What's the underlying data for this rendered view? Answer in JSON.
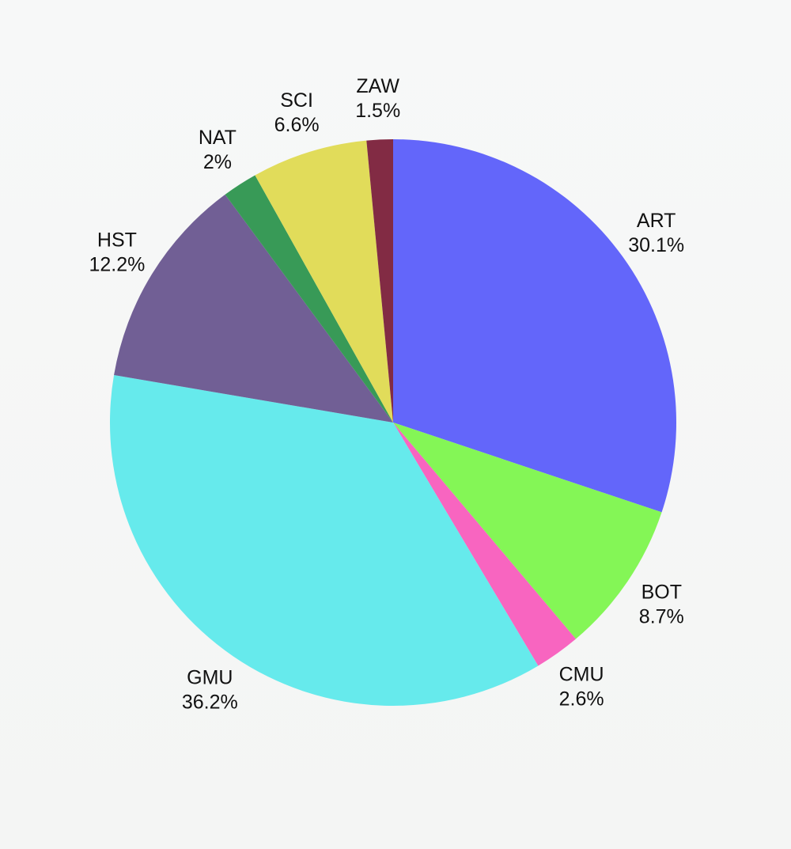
{
  "chart_data": {
    "type": "pie",
    "title": "",
    "legend": "none",
    "start_angle_deg": 0,
    "direction": "clockwise",
    "slices": [
      {
        "label": "ART",
        "value": 30.1,
        "value_label": "30.1%",
        "color": "#6366fa"
      },
      {
        "label": "BOT",
        "value": 8.7,
        "value_label": "8.7%",
        "color": "#84f656"
      },
      {
        "label": "CMU",
        "value": 2.6,
        "value_label": "2.6%",
        "color": "#f865c0"
      },
      {
        "label": "GMU",
        "value": 36.2,
        "value_label": "36.2%",
        "color": "#66eaec"
      },
      {
        "label": "HST",
        "value": 12.2,
        "value_label": "12.2%",
        "color": "#715f95"
      },
      {
        "label": "NAT",
        "value": 2,
        "value_label": "2%",
        "color": "#389a57"
      },
      {
        "label": "SCI",
        "value": 6.6,
        "value_label": "6.6%",
        "color": "#e1dc5a"
      },
      {
        "label": "ZAW",
        "value": 1.5,
        "value_label": "1.5%",
        "color": "#822b44"
      }
    ]
  }
}
